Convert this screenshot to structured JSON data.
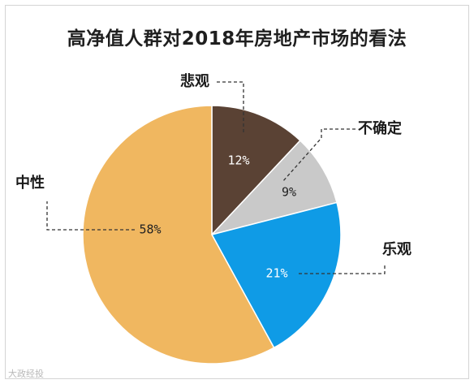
{
  "chart_data": {
    "type": "pie",
    "title": "高净值人群对2018年房地产市场的看法",
    "slices": [
      {
        "label": "悲观",
        "value": 12,
        "value_label": "12%",
        "color": "#5a4234",
        "value_color": "#ffffff"
      },
      {
        "label": "不确定",
        "value": 9,
        "value_label": "9%",
        "color": "#c9c9c9",
        "value_color": "#222222"
      },
      {
        "label": "乐观",
        "value": 21,
        "value_label": "21%",
        "color": "#0f9be6",
        "value_color": "#ffffff"
      },
      {
        "label": "中性",
        "value": 58,
        "value_label": "58%",
        "color": "#f0b760",
        "value_color": "#222222"
      }
    ],
    "start_angle": "12 o'clock, clockwise",
    "legend": "none"
  },
  "watermark": "大政经投"
}
